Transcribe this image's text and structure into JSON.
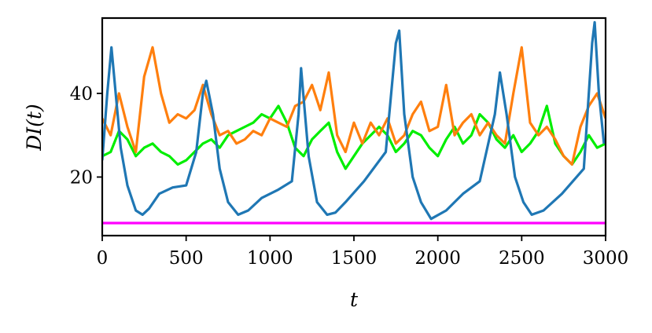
{
  "chart_data": {
    "type": "line",
    "title": "",
    "xlabel": "t",
    "ylabel": "DI(t)",
    "xlim": [
      0,
      3000
    ],
    "ylim": [
      6,
      58
    ],
    "x_ticks": [
      0,
      500,
      1000,
      1500,
      2000,
      2500,
      3000
    ],
    "x_tick_labels": [
      "0",
      "500",
      "1000",
      "1500",
      "2000",
      "2500",
      "3000"
    ],
    "y_ticks": [
      20,
      40
    ],
    "y_tick_labels": [
      "20",
      "40"
    ],
    "grid": false,
    "legend": "none",
    "series": [
      {
        "color": "#ff00ff",
        "x": [
          0,
          3000
        ],
        "values": [
          9,
          9
        ]
      },
      {
        "color": "#00ee00",
        "x": [
          0,
          50,
          100,
          150,
          200,
          250,
          300,
          350,
          400,
          450,
          500,
          550,
          600,
          650,
          700,
          750,
          800,
          850,
          900,
          950,
          1000,
          1050,
          1100,
          1150,
          1200,
          1250,
          1300,
          1350,
          1400,
          1450,
          1500,
          1550,
          1600,
          1650,
          1700,
          1750,
          1800,
          1850,
          1900,
          1950,
          2000,
          2050,
          2100,
          2150,
          2200,
          2250,
          2300,
          2350,
          2400,
          2450,
          2500,
          2550,
          2600,
          2650,
          2700,
          2750,
          2800,
          2850,
          2900,
          2950,
          3000
        ],
        "values": [
          25,
          26,
          31,
          29,
          25,
          27,
          28,
          26,
          25,
          23,
          24,
          26,
          28,
          29,
          27,
          30,
          31,
          32,
          33,
          35,
          34,
          37,
          33,
          27,
          25,
          29,
          31,
          33,
          26,
          22,
          25,
          28,
          30,
          32,
          30,
          26,
          28,
          31,
          30,
          27,
          25,
          29,
          32,
          28,
          30,
          35,
          33,
          29,
          27,
          30,
          26,
          28,
          31,
          37,
          28,
          25,
          23,
          26,
          30,
          27,
          28
        ]
      },
      {
        "color": "#ff7f0e",
        "x": [
          0,
          50,
          100,
          150,
          200,
          250,
          300,
          350,
          400,
          450,
          500,
          550,
          600,
          650,
          700,
          750,
          800,
          850,
          900,
          950,
          1000,
          1050,
          1100,
          1150,
          1200,
          1250,
          1300,
          1350,
          1400,
          1450,
          1500,
          1550,
          1600,
          1650,
          1700,
          1750,
          1800,
          1850,
          1900,
          1950,
          2000,
          2050,
          2100,
          2150,
          2200,
          2250,
          2300,
          2350,
          2400,
          2450,
          2500,
          2550,
          2600,
          2650,
          2700,
          2750,
          2800,
          2850,
          2900,
          2950,
          3000
        ],
        "values": [
          34,
          30,
          40,
          32,
          26,
          44,
          51,
          40,
          33,
          35,
          34,
          36,
          42,
          35,
          30,
          31,
          28,
          29,
          31,
          30,
          34,
          33,
          32,
          37,
          38,
          42,
          36,
          45,
          30,
          26,
          33,
          28,
          33,
          30,
          34,
          28,
          30,
          35,
          38,
          31,
          32,
          42,
          30,
          33,
          35,
          30,
          33,
          30,
          28,
          40,
          51,
          33,
          30,
          32,
          29,
          25,
          23,
          32,
          37,
          40,
          34
        ]
      },
      {
        "color": "#1f77b4",
        "x": [
          0,
          30,
          55,
          80,
          110,
          150,
          200,
          240,
          280,
          340,
          420,
          500,
          560,
          600,
          620,
          660,
          700,
          750,
          810,
          870,
          950,
          1050,
          1130,
          1170,
          1185,
          1230,
          1280,
          1340,
          1390,
          1450,
          1560,
          1690,
          1750,
          1770,
          1800,
          1850,
          1900,
          1960,
          2050,
          2150,
          2250,
          2340,
          2370,
          2410,
          2460,
          2510,
          2560,
          2630,
          2740,
          2870,
          2920,
          2935,
          2960,
          2990
        ],
        "values": [
          24,
          40,
          51,
          40,
          27,
          18,
          12,
          11,
          12.5,
          16,
          17.5,
          18,
          26,
          40,
          43,
          35,
          22,
          14,
          11,
          12,
          15,
          17,
          19,
          35,
          46,
          25,
          14,
          11,
          11.5,
          14,
          19,
          26,
          52,
          55,
          35,
          20,
          14,
          10,
          12,
          16,
          19,
          35,
          45,
          35,
          20,
          14,
          11,
          12,
          16,
          22,
          52,
          57,
          40,
          28
        ]
      }
    ]
  }
}
